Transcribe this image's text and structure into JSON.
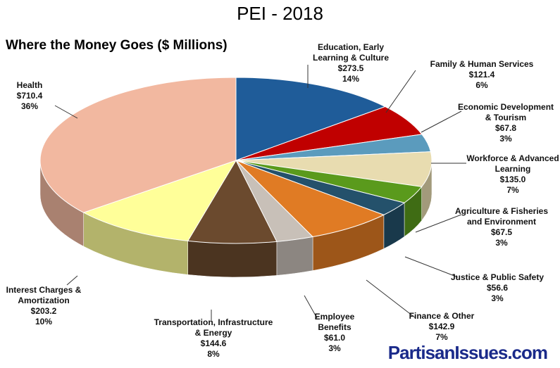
{
  "chart_data": {
    "type": "pie",
    "title": "PEI - 2018",
    "subtitle": "Where the Money Goes ($ Millions)",
    "categories": [
      "Education, Early Learning & Culture",
      "Family & Human Services",
      "Economic Development & Tourism",
      "Workforce & Advanced Learning",
      "Agriculture & Fisheries and Environment",
      "Justice & Public Safety",
      "Finance & Other",
      "Employee Benefits",
      "Transportation, Infrastructure & Energy",
      "Interest Charges & Amortization",
      "Health"
    ],
    "values": [
      273.5,
      121.4,
      67.8,
      135.0,
      67.5,
      56.6,
      142.9,
      61.0,
      144.6,
      203.2,
      710.4
    ],
    "value_labels": [
      "$273.5",
      "$121.4",
      "$67.8",
      "$135.0",
      "$67.5",
      "$56.6",
      "$142.9",
      "$61.0",
      "$144.6",
      "$203.2",
      "$710.4"
    ],
    "percentages": [
      14,
      6,
      3,
      7,
      3,
      3,
      7,
      3,
      8,
      10,
      36
    ],
    "percentage_labels": [
      "14%",
      "6%",
      "3%",
      "7%",
      "3%",
      "3%",
      "7%",
      "3%",
      "8%",
      "10%",
      "36%"
    ],
    "colors": [
      "#1f5c99",
      "#c00000",
      "#5b9bbd",
      "#e8dcb0",
      "#5a9a1c",
      "#24516b",
      "#e07b24",
      "#c8c0b8",
      "#6b4a2e",
      "#ffff99",
      "#f2b8a0"
    ],
    "watermark": "PartisanIssues.com"
  }
}
